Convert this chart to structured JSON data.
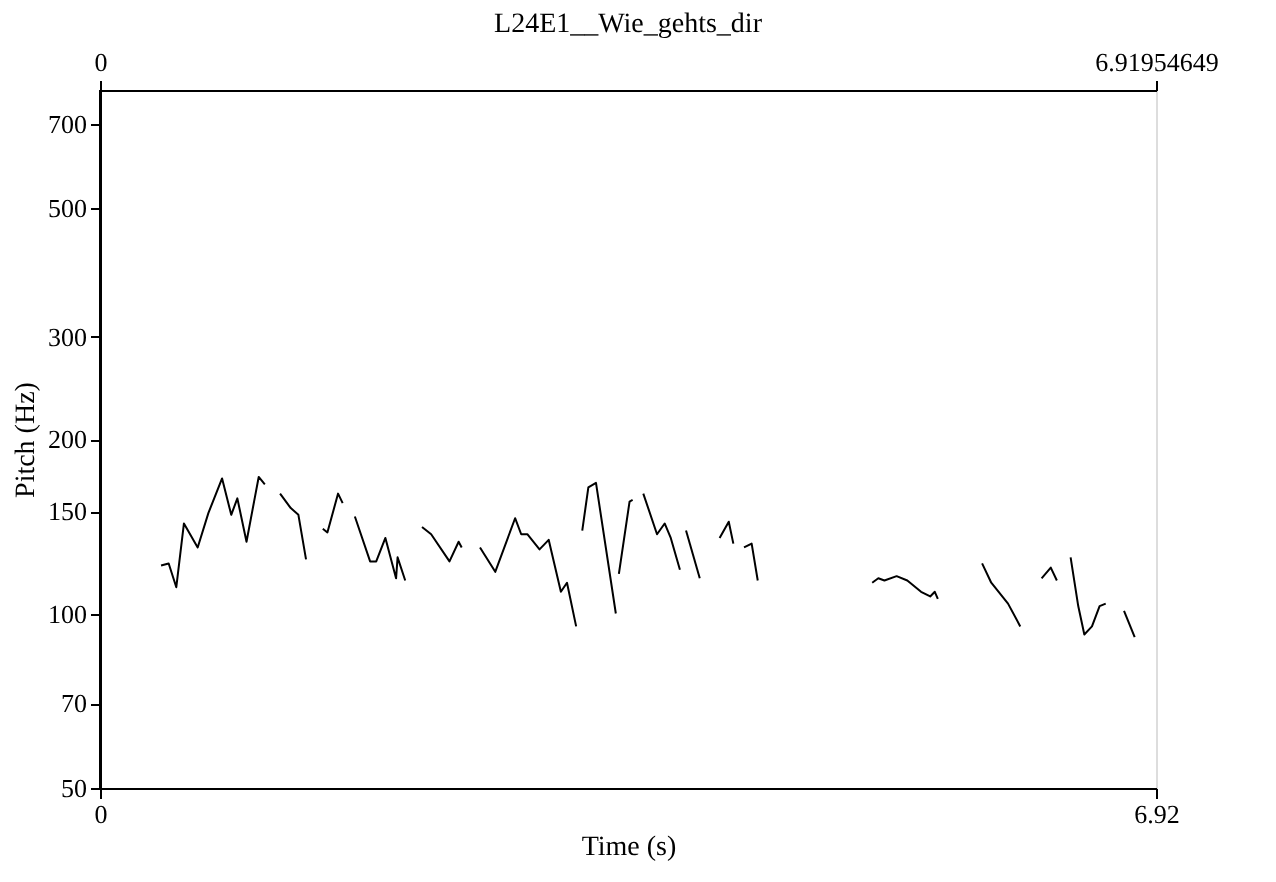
{
  "chart_data": {
    "type": "line",
    "title": "L24E1__Wie_gehts_dir",
    "xlabel": "Time (s)",
    "ylabel": "Pitch (Hz)",
    "xlim": [
      0,
      6.91954649
    ],
    "xticks": [
      0,
      {
        "value": 6.91954649,
        "label": "6.92"
      }
    ],
    "x2lim": [
      0,
      6.91954649
    ],
    "x2ticks": [
      0,
      6.91954649
    ],
    "ylim": [
      50,
      800
    ],
    "yticks": [
      50,
      70,
      100,
      150,
      200,
      300,
      500,
      700
    ],
    "log": "y",
    "grid": false,
    "legend": false,
    "marker": "none",
    "line_style": "solid",
    "series": [
      {
        "color": "#000000",
        "x": [
          0.4,
          0.45,
          0.5,
          0.55,
          0.64,
          0.71,
          0.8,
          0.86,
          0.9,
          0.96,
          1.04,
          1.08
        ],
        "values": [
          121,
          122,
          111,
          143,
          130,
          149,
          171,
          148,
          158,
          133,
          172,
          167
        ]
      },
      {
        "color": "#000000",
        "x": [
          1.18,
          1.25,
          1.3,
          1.35
        ],
        "values": [
          161,
          152,
          148,
          124
        ]
      },
      {
        "color": "#000000",
        "x": [
          1.46,
          1.49,
          1.56,
          1.59
        ],
        "values": [
          140,
          138,
          161,
          155
        ]
      },
      {
        "color": "#000000",
        "x": [
          1.67,
          1.77,
          1.81,
          1.87,
          1.94,
          1.95,
          2.0
        ],
        "values": [
          147,
          123,
          123,
          135,
          115,
          125,
          114
        ]
      },
      {
        "color": "#000000",
        "x": [
          2.11,
          2.17,
          2.29,
          2.35,
          2.37
        ],
        "values": [
          141,
          137,
          123,
          133,
          130
        ]
      },
      {
        "color": "#000000",
        "x": [
          2.49,
          2.59,
          2.72,
          2.76,
          2.8,
          2.88,
          2.94,
          3.02,
          3.06,
          3.12
        ],
        "values": [
          130,
          118,
          146,
          137,
          137,
          129,
          134,
          109,
          113,
          95
        ]
      },
      {
        "color": "#000000",
        "x": [
          3.16,
          3.2,
          3.25,
          3.38
        ],
        "values": [
          139,
          165,
          168,
          100
        ]
      },
      {
        "color": "#000000",
        "x": [
          3.4,
          3.47,
          3.49
        ],
        "values": [
          117,
          156,
          157
        ]
      },
      {
        "color": "#000000",
        "x": [
          3.56,
          3.65,
          3.7,
          3.74,
          3.8
        ],
        "values": [
          161,
          137,
          143,
          135,
          119
        ]
      },
      {
        "color": "#000000",
        "x": [
          3.84,
          3.93
        ],
        "values": [
          139,
          115
        ]
      },
      {
        "color": "#000000",
        "x": [
          4.06,
          4.12,
          4.15
        ],
        "values": [
          135,
          144,
          132
        ]
      },
      {
        "color": "#000000",
        "x": [
          4.22,
          4.27,
          4.31
        ],
        "values": [
          130,
          132,
          114
        ]
      },
      {
        "color": "#000000",
        "x": [
          5.06,
          5.1,
          5.14,
          5.22,
          5.29,
          5.38,
          5.44,
          5.47,
          5.49
        ],
        "values": [
          113,
          115,
          114,
          116,
          114,
          109,
          107,
          109,
          106
        ]
      },
      {
        "color": "#000000",
        "x": [
          5.78,
          5.84,
          5.95,
          6.03
        ],
        "values": [
          122,
          113,
          104,
          95
        ]
      },
      {
        "color": "#000000",
        "x": [
          6.17,
          6.23,
          6.27
        ],
        "values": [
          115,
          120,
          114
        ]
      },
      {
        "color": "#000000",
        "x": [
          6.36,
          6.41,
          6.45,
          6.5,
          6.55,
          6.59
        ],
        "values": [
          125,
          103,
          92,
          95,
          103,
          104
        ]
      },
      {
        "color": "#000000",
        "x": [
          6.71,
          6.78
        ],
        "values": [
          101,
          91
        ]
      }
    ]
  }
}
